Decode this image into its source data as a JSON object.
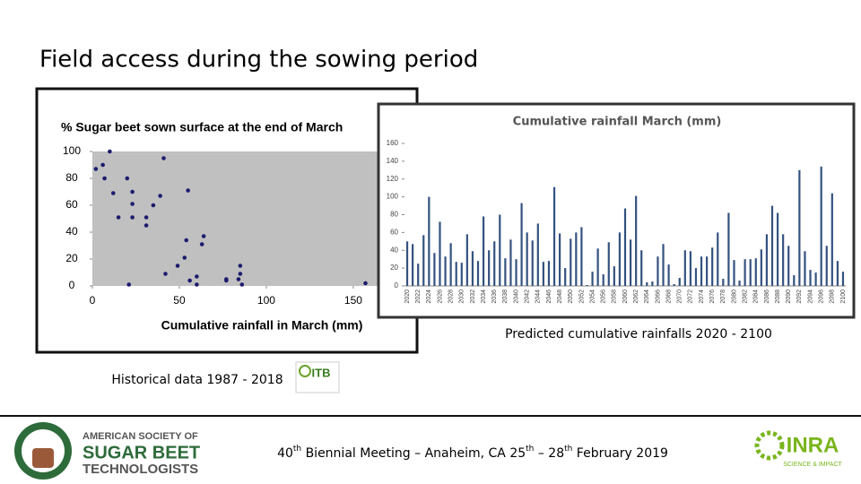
{
  "slide": {
    "title": "Field access during the sowing period",
    "caption_right": "Predicted cumulative rainfalls 2020 - 2100",
    "caption_left": "Historical data 1987 - 2018",
    "itb_logo": "ITB",
    "footer": [
      "40",
      "th",
      " Biennial Meeting – Anaheim, CA 25",
      "th",
      " – 28",
      "th",
      " February 2019"
    ],
    "assbt_logo": [
      "AMERICAN SOCIETY OF",
      "SUGAR BEET",
      "TECHNOLOGISTS"
    ],
    "inra_logo": [
      "INRA",
      "SCIENCE & IMPACT"
    ]
  },
  "chart_data": [
    {
      "type": "scatter",
      "title": "% Sugar beet sown surface at the end of March",
      "x_label": "Cumulative rainfall in  March (mm)",
      "color": "#1c1c6e",
      "background": "#c0c0c0",
      "x": [
        2,
        6,
        10,
        7,
        12,
        15,
        20,
        23,
        23,
        23,
        31,
        31,
        35,
        39,
        41,
        42,
        21,
        49,
        53,
        54,
        55,
        56,
        60,
        60,
        63,
        64,
        77,
        77,
        84,
        85,
        85,
        86,
        157
      ],
      "values": [
        87,
        90,
        100,
        80,
        69,
        51,
        80,
        70,
        61,
        51,
        51,
        45,
        60,
        67,
        95,
        9,
        1,
        15,
        21,
        34,
        71,
        4,
        7,
        1,
        31,
        37,
        5,
        4,
        5,
        15,
        9,
        1,
        2
      ],
      "xlim": [
        0,
        165
      ],
      "xticks": [
        0,
        50,
        100,
        150
      ],
      "ylim": [
        0,
        100
      ],
      "yticks": [
        0,
        20,
        40,
        60,
        80,
        100
      ]
    },
    {
      "type": "bar",
      "title": "Cumulative rainfall March (mm)",
      "color": "#34527f",
      "categories": [
        "2020",
        null,
        "2022",
        null,
        "2024",
        null,
        "2026",
        null,
        "2028",
        null,
        "2030",
        null,
        "2032",
        null,
        "2034",
        null,
        "2036",
        null,
        "2038",
        null,
        "2040",
        null,
        "2042",
        null,
        "2044",
        null,
        "2046",
        null,
        "2048",
        null,
        "2050",
        null,
        "2052",
        null,
        "2054",
        null,
        "2056",
        null,
        "2058",
        null,
        "2060",
        null,
        "2062",
        null,
        "2064",
        null,
        "2066",
        null,
        "2068",
        null,
        "2070",
        null,
        "2072",
        null,
        "2074",
        null,
        "2076",
        null,
        "2078",
        null,
        "2080",
        null,
        "2082",
        null,
        "2084",
        null,
        "2086",
        null,
        "2088",
        null,
        "2090",
        null,
        "2092",
        null,
        "2094",
        null,
        "2096",
        null,
        "2098",
        null,
        "2100"
      ],
      "values": [
        50,
        47,
        25,
        57,
        100,
        37,
        72,
        33,
        48,
        27,
        26,
        58,
        39,
        28,
        78,
        40,
        50,
        80,
        31,
        52,
        30,
        93,
        60,
        51,
        70,
        27,
        28,
        111,
        59,
        20,
        53,
        60,
        66,
        1,
        16,
        42,
        13,
        49,
        22,
        60,
        87,
        52,
        101,
        40,
        4,
        5,
        33,
        47,
        24,
        2,
        9,
        40,
        39,
        20,
        33,
        33,
        43,
        60,
        8,
        82,
        29,
        6,
        30,
        30,
        31,
        41,
        58,
        90,
        82,
        58,
        45,
        12,
        130,
        39,
        18,
        15,
        134,
        45,
        104,
        28,
        16
      ],
      "ylim": [
        0,
        160
      ],
      "yticks": [
        0,
        20,
        40,
        60,
        80,
        100,
        120,
        140,
        160
      ]
    }
  ]
}
